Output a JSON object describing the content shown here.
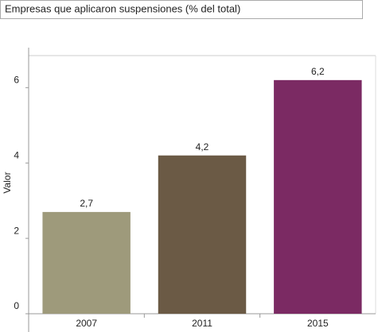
{
  "chart_data": {
    "type": "bar",
    "title": "Empresas que aplicaron suspensiones (% del total)",
    "y_label": "Valor",
    "categories": [
      "2007",
      "2011",
      "2015"
    ],
    "values": [
      2.7,
      4.2,
      6.2
    ],
    "value_labels": [
      "2,7",
      "4,2",
      "6,2"
    ],
    "colors": [
      "#9e9a7b",
      "#6b5a45",
      "#7b2a63"
    ],
    "ylim": [
      0,
      6.85
    ],
    "yticks": [
      0,
      2,
      4,
      6
    ],
    "grid": false
  }
}
